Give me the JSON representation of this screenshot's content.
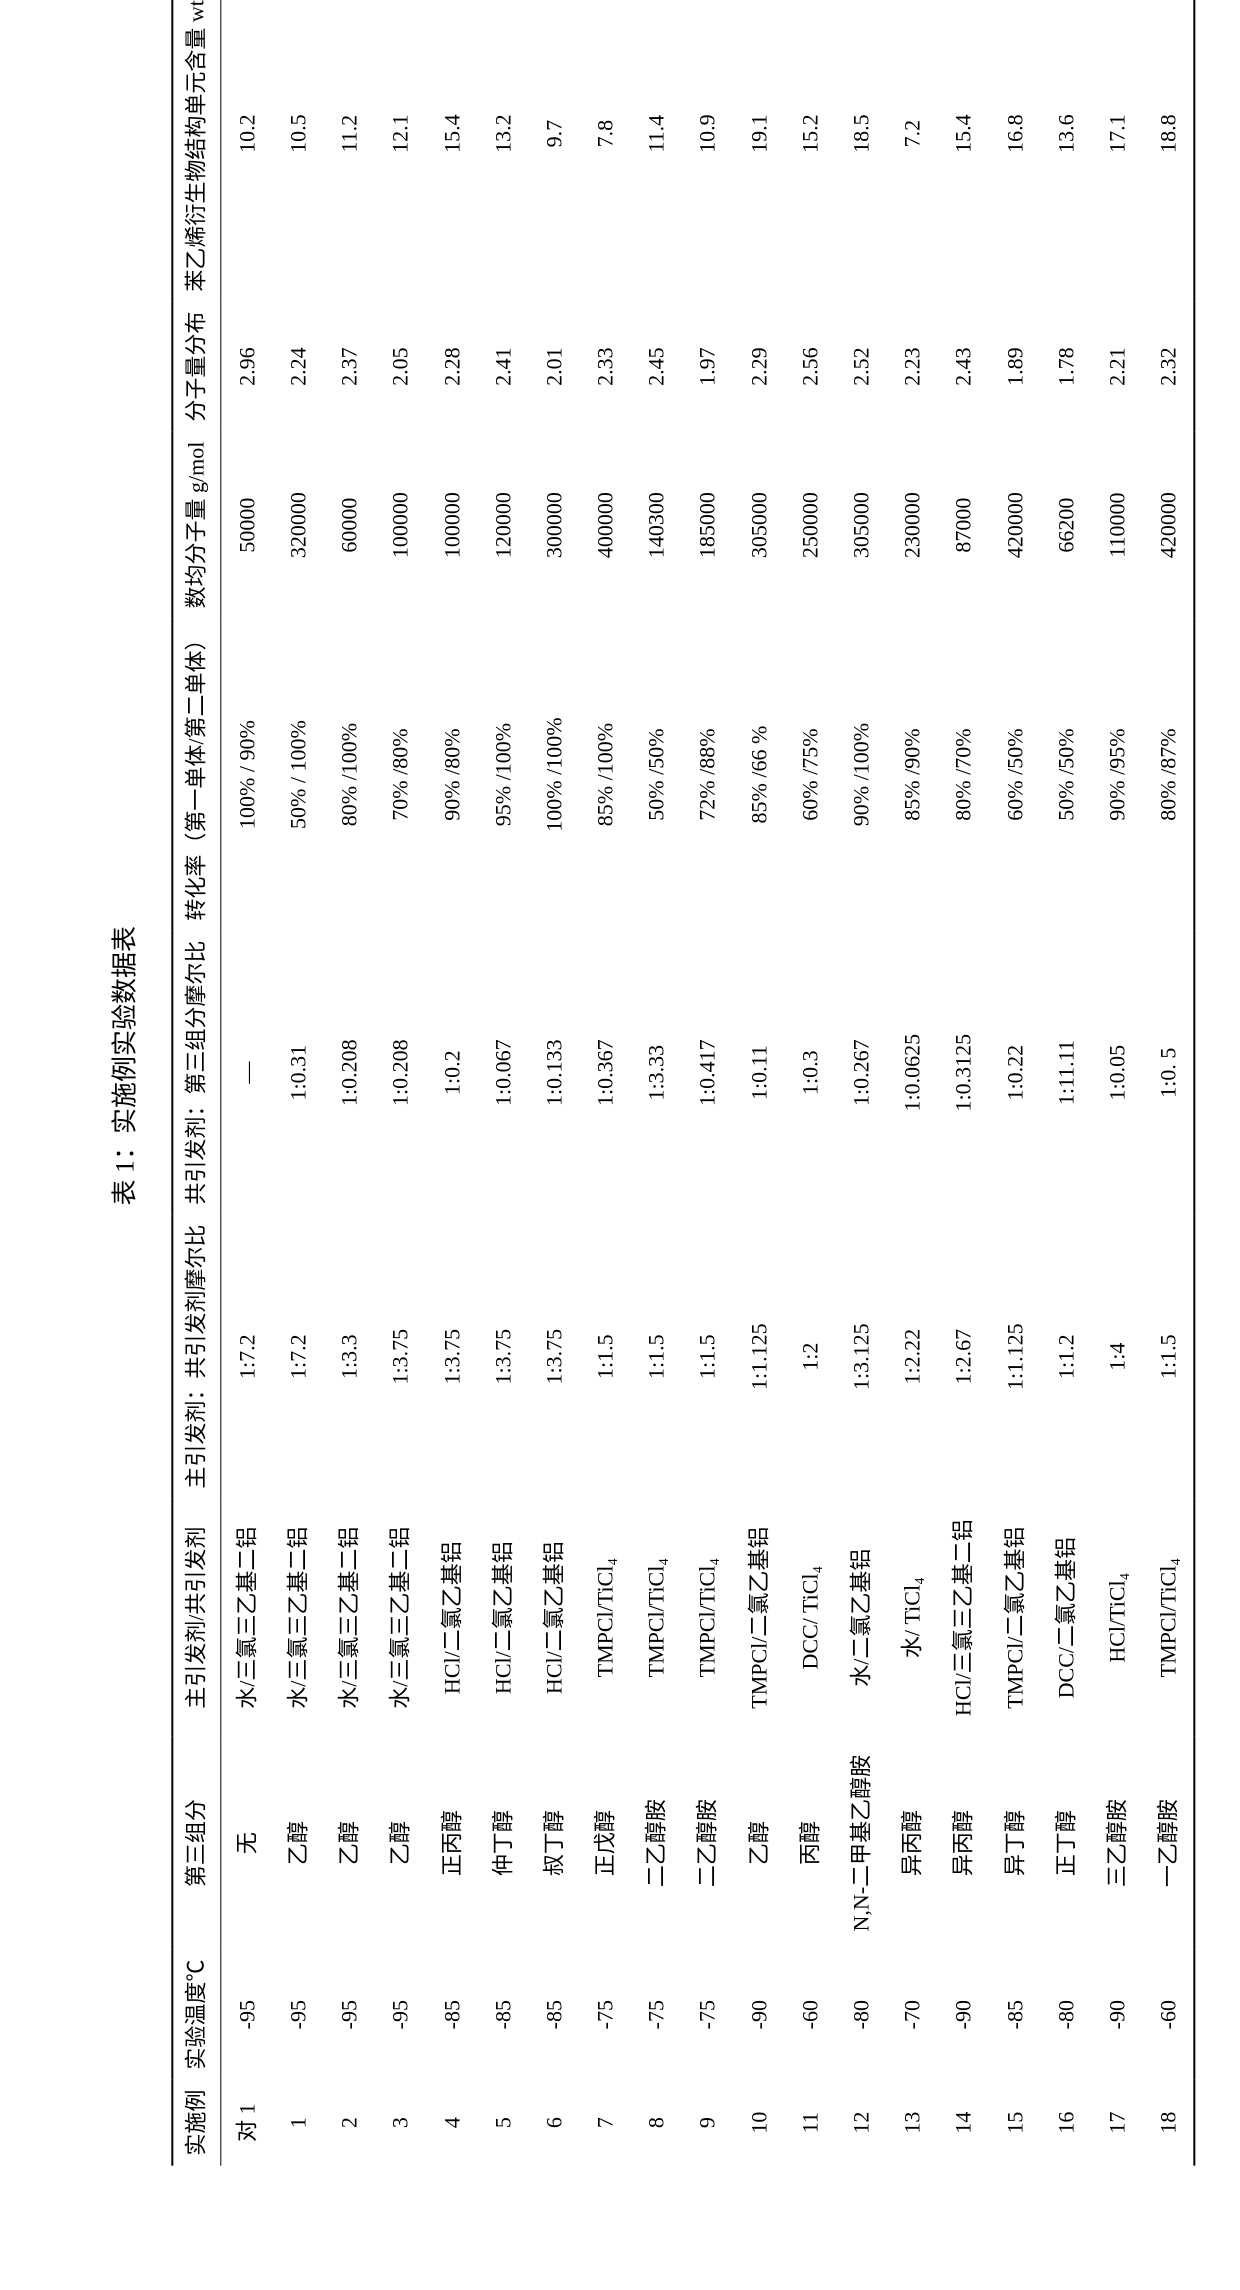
{
  "title": "表 1：实施例实验数据表",
  "headers": {
    "col1": "实施例",
    "col2": "实验温度℃",
    "col3": "第三组分",
    "col4": "主引发剂/共引发剂",
    "col5": "主引发剂：共引发剂摩尔比",
    "col6": "共引发剂：第三组分摩尔比",
    "col7": "转化率（第一单体/第二单体）",
    "col8": "数均分子量 g/mol",
    "col9": "分子量分布",
    "col10": "苯乙烯衍生物结构单元含量 wt/%"
  },
  "rows": [
    {
      "c1": "对 1",
      "c2": "-95",
      "c3": "无",
      "c4": "水/三氯三乙基二铝",
      "c5": "1:7.2",
      "c6": "—",
      "c7": "100% / 90%",
      "c8": "50000",
      "c9": "2.96",
      "c10": "10.2"
    },
    {
      "c1": "1",
      "c2": "-95",
      "c3": "乙醇",
      "c4": "水/三氯三乙基二铝",
      "c5": "1:7.2",
      "c6": "1:0.31",
      "c7": "50% / 100%",
      "c8": "320000",
      "c9": "2.24",
      "c10": "10.5"
    },
    {
      "c1": "2",
      "c2": "-95",
      "c3": "乙醇",
      "c4": "水/三氯三乙基二铝",
      "c5": "1:3.3",
      "c6": "1:0.208",
      "c7": "80% /100%",
      "c8": "60000",
      "c9": "2.37",
      "c10": "11.2"
    },
    {
      "c1": "3",
      "c2": "-95",
      "c3": "乙醇",
      "c4": "水/三氯三乙基二铝",
      "c5": "1:3.75",
      "c6": "1:0.208",
      "c7": "70% /80%",
      "c8": "100000",
      "c9": "2.05",
      "c10": "12.1"
    },
    {
      "c1": "4",
      "c2": "-85",
      "c3": "正丙醇",
      "c4": "HCl/二氯乙基铝",
      "c5": "1:3.75",
      "c6": "1:0.2",
      "c7": "90% /80%",
      "c8": "100000",
      "c9": "2.28",
      "c10": "15.4"
    },
    {
      "c1": "5",
      "c2": "-85",
      "c3": "仲丁醇",
      "c4": "HCl/二氯乙基铝",
      "c5": "1:3.75",
      "c6": "1:0.067",
      "c7": "95% /100%",
      "c8": "120000",
      "c9": "2.41",
      "c10": "13.2"
    },
    {
      "c1": "6",
      "c2": "-85",
      "c3": "叔丁醇",
      "c4": "HCl/二氯乙基铝",
      "c5": "1:3.75",
      "c6": "1:0.133",
      "c7": "100% /100%",
      "c8": "300000",
      "c9": "2.01",
      "c10": "9.7"
    },
    {
      "c1": "7",
      "c2": "-75",
      "c3": "正戊醇",
      "c4": "TMPCl/TiCl₄",
      "c5": "1:1.5",
      "c6": "1:0.367",
      "c7": "85% /100%",
      "c8": "400000",
      "c9": "2.33",
      "c10": "7.8"
    },
    {
      "c1": "8",
      "c2": "-75",
      "c3": "二乙醇胺",
      "c4": "TMPCl/TiCl₄",
      "c5": "1:1.5",
      "c6": "1:3.33",
      "c7": "50% /50%",
      "c8": "140300",
      "c9": "2.45",
      "c10": "11.4"
    },
    {
      "c1": "9",
      "c2": "-75",
      "c3": "二乙醇胺",
      "c4": "TMPCl/TiCl₄",
      "c5": "1:1.5",
      "c6": "1:0.417",
      "c7": "72% /88%",
      "c8": "185000",
      "c9": "1.97",
      "c10": "10.9"
    },
    {
      "c1": "10",
      "c2": "-90",
      "c3": "乙醇",
      "c4": "TMPCl/二氯乙基铝",
      "c5": "1:1.125",
      "c6": "1:0.11",
      "c7": "85% /66 %",
      "c8": "305000",
      "c9": "2.29",
      "c10": "19.1"
    },
    {
      "c1": "11",
      "c2": "-60",
      "c3": "丙醇",
      "c4": "DCC/ TiCl₄",
      "c5": "1:2",
      "c6": "1:0.3",
      "c7": "60% /75%",
      "c8": "250000",
      "c9": "2.56",
      "c10": "15.2"
    },
    {
      "c1": "12",
      "c2": "-80",
      "c3": "N,N-二甲基乙醇胺",
      "c4": "水/二氯乙基铝",
      "c5": "1:3.125",
      "c6": "1:0.267",
      "c7": "90% /100%",
      "c8": "305000",
      "c9": "2.52",
      "c10": "18.5"
    },
    {
      "c1": "13",
      "c2": "-70",
      "c3": "异丙醇",
      "c4": "水/ TiCl₄",
      "c5": "1:2.22",
      "c6": "1:0.0625",
      "c7": "85% /90%",
      "c8": "230000",
      "c9": "2.23",
      "c10": "7.2"
    },
    {
      "c1": "14",
      "c2": "-90",
      "c3": "异丙醇",
      "c4": "HCl/三氯三乙基二铝",
      "c5": "1:2.67",
      "c6": "1:0.3125",
      "c7": "80% /70%",
      "c8": "87000",
      "c9": "2.43",
      "c10": "15.4"
    },
    {
      "c1": "15",
      "c2": "-85",
      "c3": "异丁醇",
      "c4": "TMPCl/二氯乙基铝",
      "c5": "1:1.125",
      "c6": "1:0.22",
      "c7": "60% /50%",
      "c8": "420000",
      "c9": "1.89",
      "c10": "16.8"
    },
    {
      "c1": "16",
      "c2": "-80",
      "c3": "正丁醇",
      "c4": "DCC/二氯乙基铝",
      "c5": "1:1.2",
      "c6": "1:11.11",
      "c7": "50% /50%",
      "c8": "66200",
      "c9": "1.78",
      "c10": "13.6"
    },
    {
      "c1": "17",
      "c2": "-90",
      "c3": "三乙醇胺",
      "c4": "HCl/TiCl₄",
      "c5": "1:4",
      "c6": "1:0.05",
      "c7": "90% /95%",
      "c8": "110000",
      "c9": "2.21",
      "c10": "17.1"
    },
    {
      "c1": "18",
      "c2": "-60",
      "c3": "一乙醇胺",
      "c4": "TMPCl/TiCl₄",
      "c5": "1:1.5",
      "c6": "1:0. 5",
      "c7": "80% /87%",
      "c8": "420000",
      "c9": "2.32",
      "c10": "18.8"
    }
  ]
}
